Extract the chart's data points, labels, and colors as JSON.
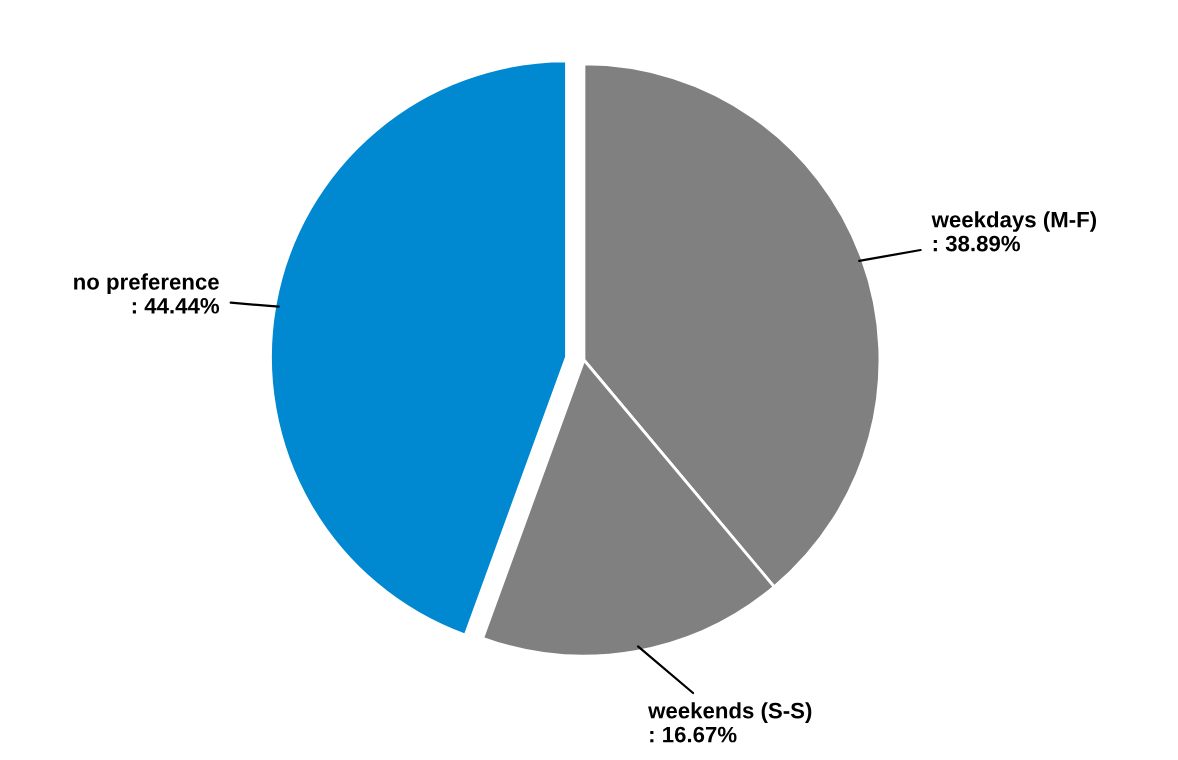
{
  "chart_data": {
    "type": "pie",
    "categories": [
      "weekdays (M-F)",
      "weekends (S-S)",
      "no preference"
    ],
    "values": [
      38.89,
      16.67,
      44.44
    ],
    "value_labels": [
      ": 38.89%",
      ": 16.67%",
      ": 44.44%"
    ],
    "colors": [
      "#808080",
      "#808080",
      "#0088d1"
    ],
    "legend": false
  }
}
